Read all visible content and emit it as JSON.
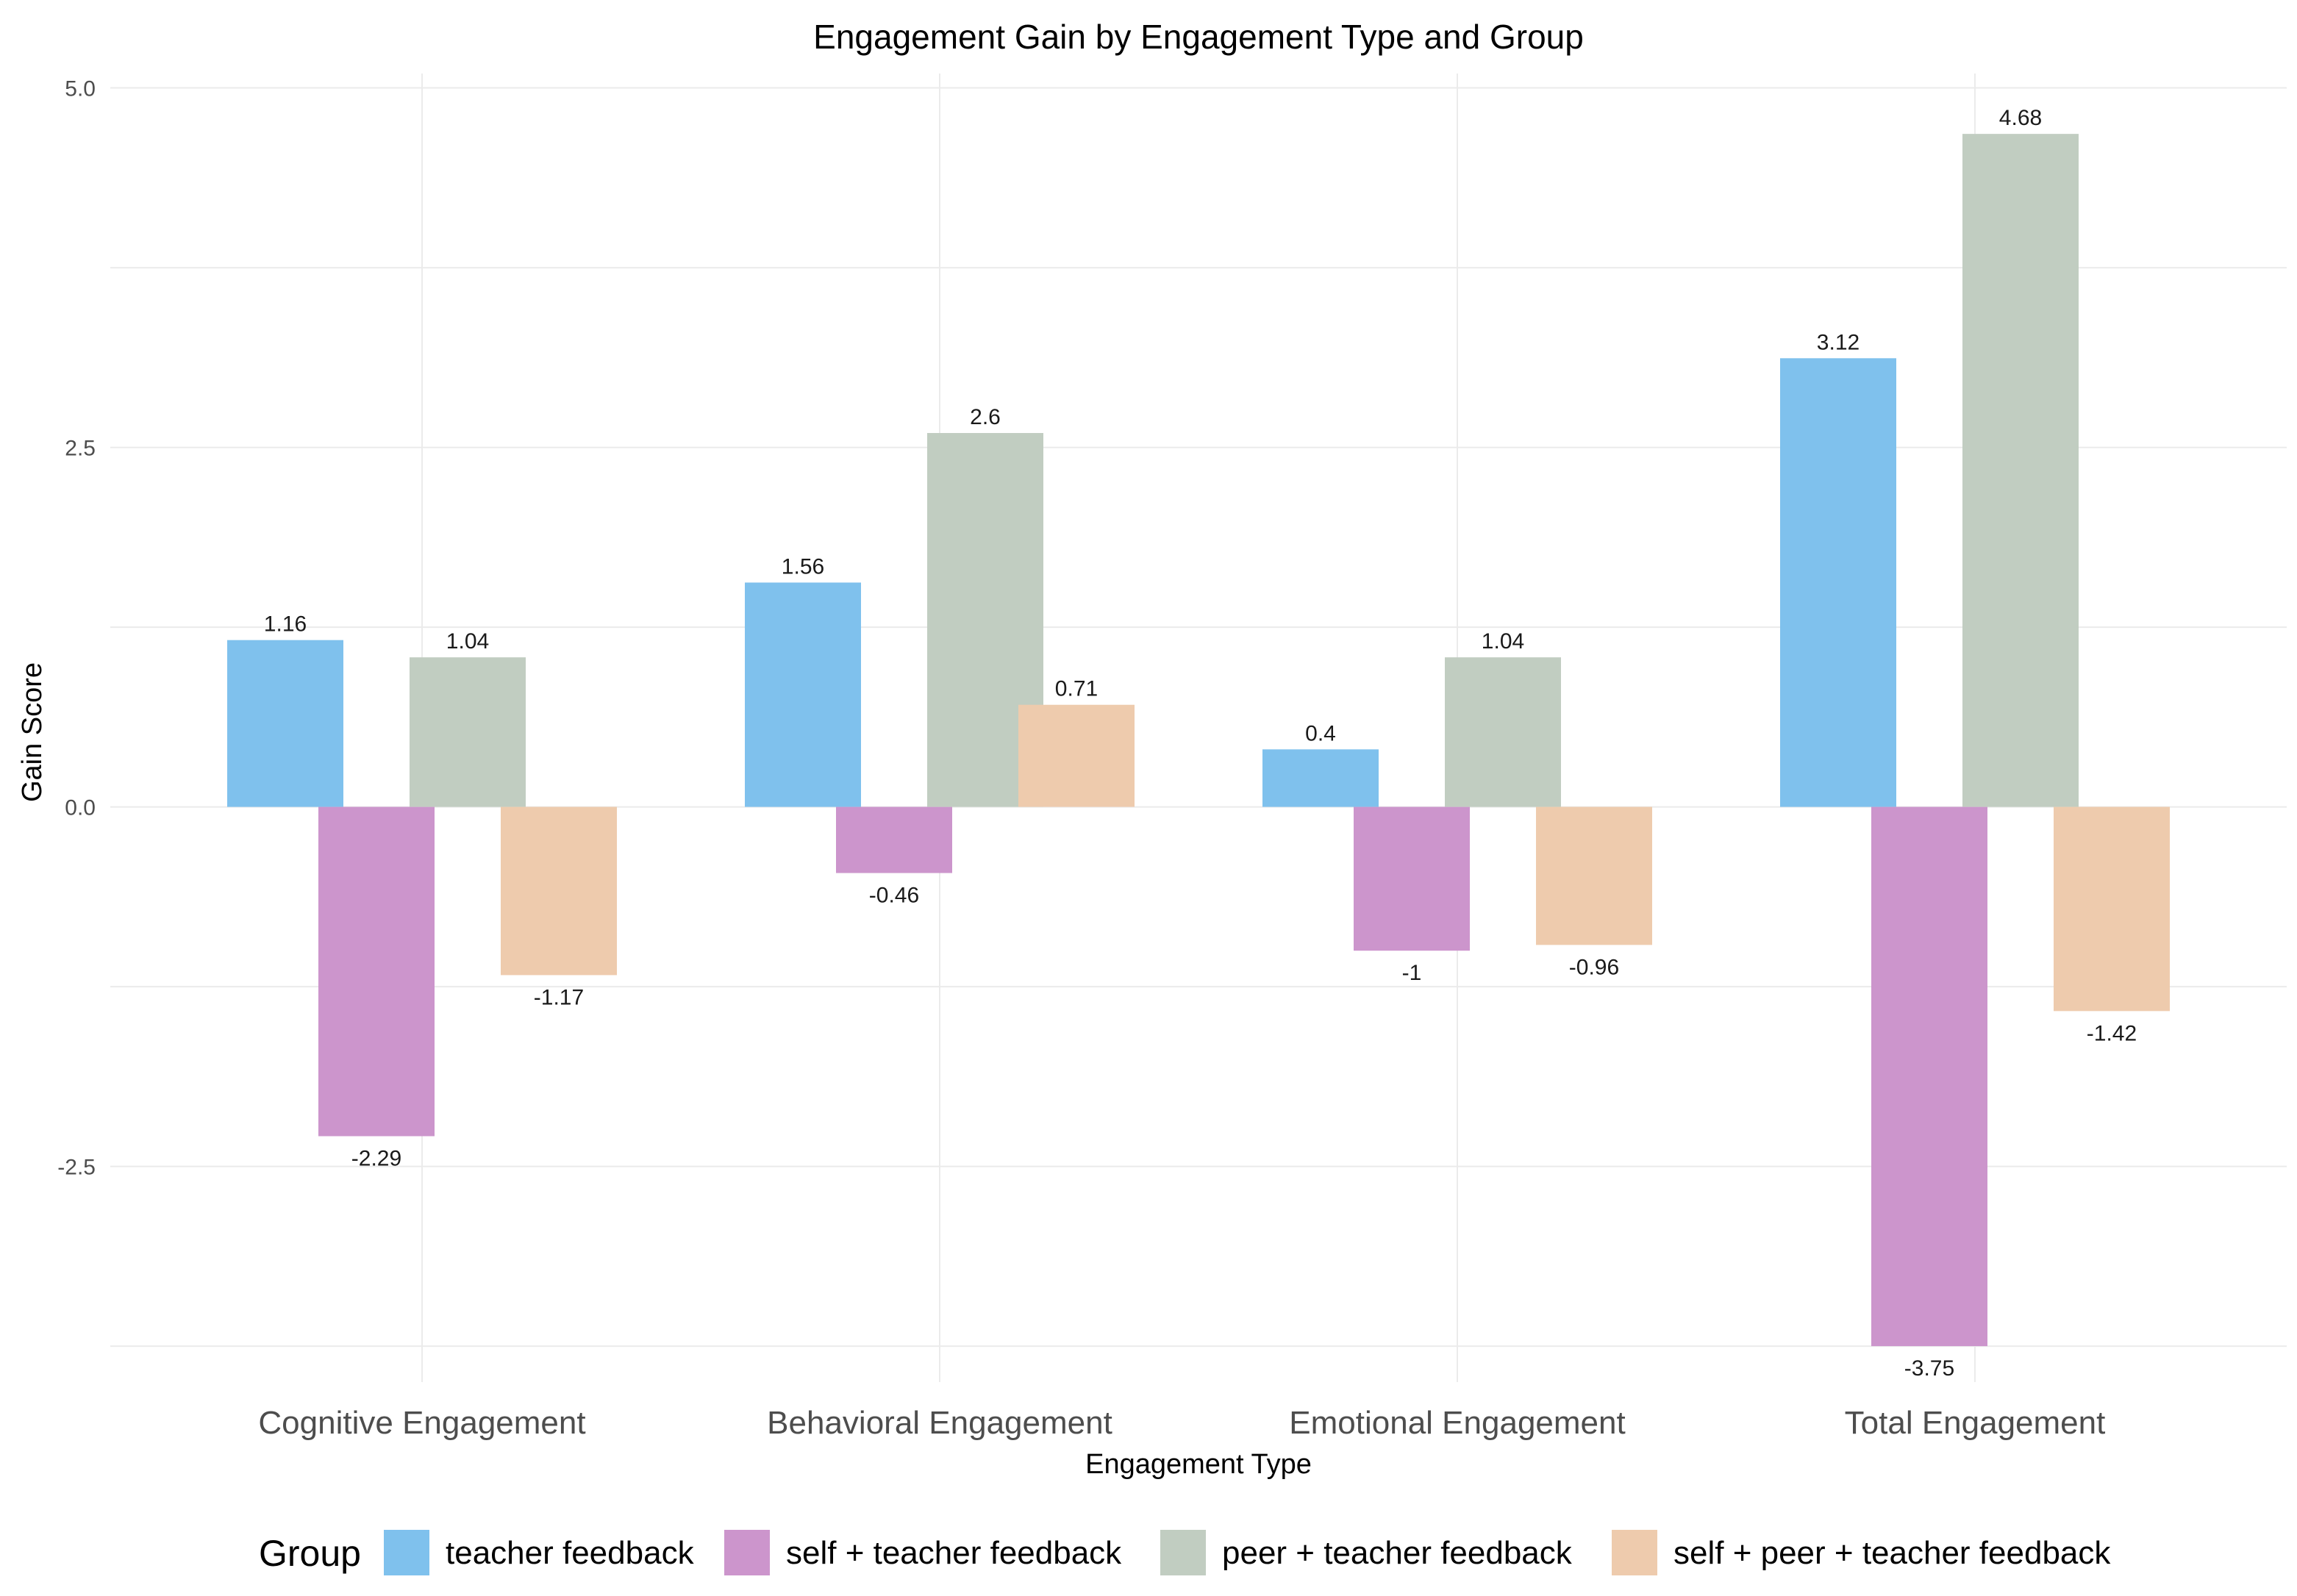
{
  "chart_data": {
    "type": "bar",
    "title": "Engagement Gain by Engagement Type and Group",
    "xlabel": "Engagement Type",
    "ylabel": "Gain Score",
    "categories": [
      "Cognitive Engagement",
      "Behavioral Engagement",
      "Emotional Engagement",
      "Total Engagement"
    ],
    "series": [
      {
        "name": "teacher feedback",
        "color": "#7fc1ed",
        "values": [
          1.16,
          1.56,
          0.4,
          3.12
        ]
      },
      {
        "name": "self + teacher feedback",
        "color": "#cc95cc",
        "values": [
          -2.29,
          -0.46,
          -1,
          -3.75
        ]
      },
      {
        "name": "peer + teacher feedback",
        "color": "#c1cdc1",
        "values": [
          1.04,
          2.6,
          1.04,
          4.68
        ]
      },
      {
        "name": "self + peer + teacher feedback",
        "color": "#eecbad",
        "values": [
          -1.17,
          0.71,
          -0.96,
          -1.42
        ]
      }
    ],
    "ylim": [
      -4.0,
      5.1
    ],
    "yticks": [
      -2.5,
      0.0,
      2.5,
      5.0
    ],
    "ytick_labels": [
      "-2.5",
      "0.0",
      "2.5",
      "5.0"
    ],
    "grid": true,
    "legend": {
      "title": "Group",
      "position": "bottom"
    }
  }
}
